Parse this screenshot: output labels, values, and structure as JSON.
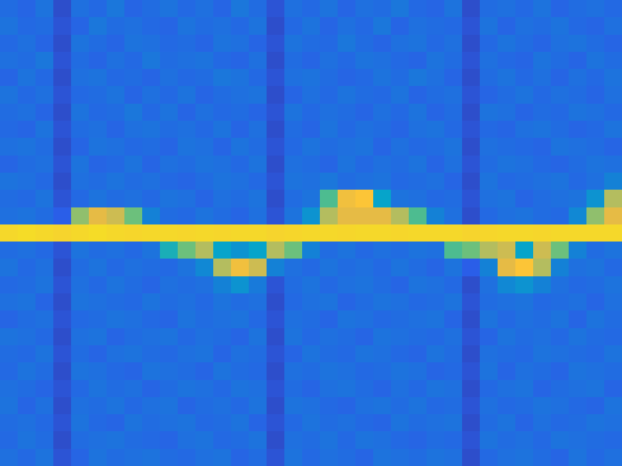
{
  "chart_data": {
    "type": "heatmap",
    "color": "parula",
    "tick_labels": false,
    "color_range": [
      0,
      1
    ],
    "cells": [
      [
        0.14,
        0.12,
        0.16,
        0.07,
        0.15,
        0.13,
        0.17,
        0.12,
        0.14,
        0.16,
        0.13,
        0.15,
        0.12,
        0.17,
        0.14,
        0.08,
        0.15,
        0.13,
        0.16,
        0.12,
        0.15,
        0.14,
        0.17,
        0.13,
        0.12,
        0.16,
        0.07,
        0.14,
        0.15,
        0.13,
        0.16,
        0.12,
        0.14,
        0.15,
        0.13
      ],
      [
        0.16,
        0.13,
        0.14,
        0.08,
        0.12,
        0.17,
        0.14,
        0.15,
        0.13,
        0.12,
        0.16,
        0.14,
        0.15,
        0.13,
        0.16,
        0.07,
        0.13,
        0.16,
        0.12,
        0.15,
        0.13,
        0.17,
        0.12,
        0.15,
        0.14,
        0.13,
        0.08,
        0.16,
        0.12,
        0.15,
        0.14,
        0.16,
        0.13,
        0.12,
        0.15
      ],
      [
        0.13,
        0.15,
        0.12,
        0.07,
        0.16,
        0.14,
        0.12,
        0.16,
        0.15,
        0.13,
        0.14,
        0.12,
        0.16,
        0.15,
        0.12,
        0.08,
        0.16,
        0.14,
        0.13,
        0.17,
        0.14,
        0.12,
        0.15,
        0.16,
        0.13,
        0.15,
        0.07,
        0.13,
        0.16,
        0.14,
        0.12,
        0.15,
        0.16,
        0.14,
        0.12
      ],
      [
        0.15,
        0.14,
        0.17,
        0.08,
        0.14,
        0.12,
        0.15,
        0.13,
        0.17,
        0.14,
        0.15,
        0.16,
        0.13,
        0.12,
        0.15,
        0.07,
        0.14,
        0.12,
        0.15,
        0.13,
        0.16,
        0.15,
        0.13,
        0.12,
        0.16,
        0.14,
        0.08,
        0.15,
        0.13,
        0.12,
        0.16,
        0.14,
        0.12,
        0.16,
        0.14
      ],
      [
        0.12,
        0.16,
        0.13,
        0.07,
        0.15,
        0.16,
        0.13,
        0.14,
        0.12,
        0.15,
        0.13,
        0.14,
        0.17,
        0.16,
        0.13,
        0.08,
        0.15,
        0.16,
        0.14,
        0.12,
        0.13,
        0.16,
        0.14,
        0.17,
        0.15,
        0.12,
        0.07,
        0.14,
        0.16,
        0.13,
        0.15,
        0.12,
        0.15,
        0.13,
        0.16
      ],
      [
        0.16,
        0.13,
        0.15,
        0.08,
        0.13,
        0.14,
        0.16,
        0.12,
        0.15,
        0.13,
        0.16,
        0.12,
        0.14,
        0.15,
        0.16,
        0.07,
        0.12,
        0.15,
        0.13,
        0.16,
        0.14,
        0.13,
        0.16,
        0.12,
        0.14,
        0.15,
        0.08,
        0.12,
        0.14,
        0.16,
        0.13,
        0.15,
        0.14,
        0.12,
        0.15
      ],
      [
        0.14,
        0.15,
        0.12,
        0.07,
        0.16,
        0.13,
        0.14,
        0.17,
        0.13,
        0.16,
        0.12,
        0.15,
        0.13,
        0.14,
        0.12,
        0.08,
        0.16,
        0.13,
        0.15,
        0.14,
        0.12,
        0.15,
        0.13,
        0.16,
        0.12,
        0.14,
        0.07,
        0.16,
        0.15,
        0.12,
        0.14,
        0.13,
        0.16,
        0.15,
        0.13
      ],
      [
        0.13,
        0.12,
        0.16,
        0.08,
        0.14,
        0.15,
        0.12,
        0.15,
        0.16,
        0.14,
        0.15,
        0.13,
        0.16,
        0.12,
        0.15,
        0.07,
        0.14,
        0.12,
        0.16,
        0.13,
        0.15,
        0.14,
        0.12,
        0.15,
        0.16,
        0.13,
        0.08,
        0.13,
        0.12,
        0.15,
        0.16,
        0.14,
        0.12,
        0.13,
        0.16
      ],
      [
        0.15,
        0.16,
        0.14,
        0.07,
        0.12,
        0.16,
        0.15,
        0.13,
        0.14,
        0.12,
        0.16,
        0.15,
        0.12,
        0.16,
        0.14,
        0.08,
        0.13,
        0.16,
        0.14,
        0.15,
        0.16,
        0.12,
        0.15,
        0.13,
        0.14,
        0.16,
        0.07,
        0.15,
        0.14,
        0.13,
        0.12,
        0.16,
        0.15,
        0.14,
        0.12
      ],
      [
        0.12,
        0.14,
        0.15,
        0.08,
        0.16,
        0.12,
        0.13,
        0.16,
        0.12,
        0.15,
        0.14,
        0.16,
        0.15,
        0.13,
        0.16,
        0.07,
        0.15,
        0.14,
        0.12,
        0.16,
        0.13,
        0.15,
        0.14,
        0.16,
        0.12,
        0.15,
        0.08,
        0.14,
        0.16,
        0.15,
        0.13,
        0.12,
        0.14,
        0.16,
        0.15
      ],
      [
        0.16,
        0.15,
        0.13,
        0.07,
        0.15,
        0.14,
        0.16,
        0.14,
        0.15,
        0.13,
        0.12,
        0.14,
        0.16,
        0.15,
        0.13,
        0.08,
        0.16,
        0.15,
        0.17,
        0.14,
        0.15,
        0.16,
        0.13,
        0.14,
        0.15,
        0.12,
        0.07,
        0.16,
        0.13,
        0.14,
        0.15,
        0.16,
        0.13,
        0.15,
        0.2
      ],
      [
        0.14,
        0.13,
        0.16,
        0.08,
        0.13,
        0.16,
        0.14,
        0.15,
        0.13,
        0.16,
        0.15,
        0.12,
        0.15,
        0.14,
        0.16,
        0.07,
        0.14,
        0.16,
        0.45,
        0.75,
        0.8,
        0.3,
        0.16,
        0.15,
        0.13,
        0.14,
        0.08,
        0.15,
        0.16,
        0.12,
        0.14,
        0.15,
        0.16,
        0.25,
        0.6
      ],
      [
        0.15,
        0.16,
        0.14,
        0.1,
        0.55,
        0.7,
        0.65,
        0.5,
        0.2,
        0.14,
        0.13,
        0.16,
        0.14,
        0.12,
        0.15,
        0.08,
        0.16,
        0.25,
        0.6,
        0.7,
        0.7,
        0.7,
        0.6,
        0.45,
        0.2,
        0.15,
        0.07,
        0.13,
        0.15,
        0.16,
        0.14,
        0.13,
        0.22,
        0.55,
        0.7
      ],
      [
        0.9,
        0.91,
        0.9,
        0.88,
        0.9,
        0.91,
        0.9,
        0.89,
        0.9,
        0.9,
        0.89,
        0.9,
        0.89,
        0.9,
        0.9,
        0.88,
        0.89,
        0.9,
        0.9,
        0.89,
        0.9,
        0.9,
        0.89,
        0.9,
        0.9,
        0.9,
        0.88,
        0.89,
        0.9,
        0.9,
        0.89,
        0.9,
        0.9,
        0.9,
        0.9
      ],
      [
        0.14,
        0.15,
        0.13,
        0.08,
        0.16,
        0.14,
        0.15,
        0.13,
        0.16,
        0.35,
        0.5,
        0.6,
        0.3,
        0.25,
        0.3,
        0.6,
        0.5,
        0.2,
        0.14,
        0.16,
        0.13,
        0.15,
        0.14,
        0.16,
        0.15,
        0.45,
        0.5,
        0.6,
        0.65,
        0.3,
        0.65,
        0.5,
        0.2,
        0.14,
        0.16
      ],
      [
        0.16,
        0.13,
        0.15,
        0.07,
        0.14,
        0.16,
        0.13,
        0.15,
        0.14,
        0.13,
        0.16,
        0.22,
        0.6,
        0.75,
        0.65,
        0.2,
        0.15,
        0.13,
        0.16,
        0.14,
        0.15,
        0.13,
        0.16,
        0.14,
        0.12,
        0.16,
        0.1,
        0.2,
        0.7,
        0.8,
        0.6,
        0.2,
        0.15,
        0.16,
        0.13
      ],
      [
        0.13,
        0.14,
        0.16,
        0.08,
        0.15,
        0.13,
        0.16,
        0.14,
        0.12,
        0.15,
        0.14,
        0.15,
        0.2,
        0.25,
        0.18,
        0.08,
        0.14,
        0.16,
        0.13,
        0.15,
        0.16,
        0.14,
        0.12,
        0.16,
        0.15,
        0.13,
        0.07,
        0.15,
        0.22,
        0.25,
        0.2,
        0.15,
        0.13,
        0.14,
        0.16
      ],
      [
        0.15,
        0.16,
        0.12,
        0.07,
        0.16,
        0.15,
        0.14,
        0.13,
        0.16,
        0.14,
        0.15,
        0.13,
        0.16,
        0.14,
        0.15,
        0.07,
        0.13,
        0.15,
        0.16,
        0.12,
        0.14,
        0.16,
        0.15,
        0.13,
        0.14,
        0.16,
        0.08,
        0.14,
        0.15,
        0.16,
        0.13,
        0.14,
        0.15,
        0.12,
        0.15
      ],
      [
        0.12,
        0.14,
        0.15,
        0.08,
        0.13,
        0.14,
        0.16,
        0.15,
        0.13,
        0.12,
        0.16,
        0.14,
        0.15,
        0.16,
        0.13,
        0.08,
        0.15,
        0.14,
        0.12,
        0.16,
        0.15,
        0.13,
        0.14,
        0.15,
        0.16,
        0.12,
        0.07,
        0.16,
        0.13,
        0.15,
        0.14,
        0.16,
        0.12,
        0.16,
        0.14
      ],
      [
        0.16,
        0.15,
        0.13,
        0.07,
        0.15,
        0.16,
        0.12,
        0.14,
        0.15,
        0.16,
        0.13,
        0.15,
        0.14,
        0.12,
        0.16,
        0.07,
        0.16,
        0.13,
        0.15,
        0.14,
        0.12,
        0.16,
        0.15,
        0.14,
        0.13,
        0.15,
        0.08,
        0.12,
        0.16,
        0.14,
        0.15,
        0.13,
        0.16,
        0.14,
        0.13
      ],
      [
        0.14,
        0.13,
        0.16,
        0.08,
        0.14,
        0.12,
        0.15,
        0.16,
        0.14,
        0.13,
        0.15,
        0.16,
        0.12,
        0.15,
        0.14,
        0.08,
        0.12,
        0.16,
        0.14,
        0.13,
        0.16,
        0.15,
        0.13,
        0.12,
        0.16,
        0.14,
        0.07,
        0.15,
        0.14,
        0.13,
        0.16,
        0.15,
        0.14,
        0.13,
        0.16
      ],
      [
        0.13,
        0.16,
        0.14,
        0.07,
        0.16,
        0.15,
        0.13,
        0.12,
        0.16,
        0.15,
        0.14,
        0.12,
        0.16,
        0.14,
        0.13,
        0.07,
        0.15,
        0.14,
        0.16,
        0.15,
        0.13,
        0.14,
        0.16,
        0.15,
        0.12,
        0.13,
        0.08,
        0.16,
        0.12,
        0.15,
        0.14,
        0.12,
        0.16,
        0.15,
        0.14
      ],
      [
        0.15,
        0.14,
        0.12,
        0.08,
        0.13,
        0.16,
        0.14,
        0.15,
        0.12,
        0.14,
        0.16,
        0.15,
        0.13,
        0.16,
        0.15,
        0.08,
        0.14,
        0.12,
        0.15,
        0.16,
        0.14,
        0.12,
        0.15,
        0.13,
        0.16,
        0.15,
        0.07,
        0.13,
        0.15,
        0.16,
        0.12,
        0.14,
        0.15,
        0.16,
        0.12
      ],
      [
        0.16,
        0.12,
        0.15,
        0.07,
        0.15,
        0.14,
        0.16,
        0.13,
        0.15,
        0.16,
        0.12,
        0.14,
        0.15,
        0.13,
        0.16,
        0.07,
        0.16,
        0.15,
        0.13,
        0.12,
        0.15,
        0.16,
        0.14,
        0.16,
        0.13,
        0.14,
        0.08,
        0.15,
        0.13,
        0.14,
        0.16,
        0.15,
        0.13,
        0.12,
        0.16
      ],
      [
        0.14,
        0.15,
        0.13,
        0.08,
        0.16,
        0.13,
        0.12,
        0.16,
        0.14,
        0.15,
        0.16,
        0.13,
        0.14,
        0.16,
        0.12,
        0.08,
        0.13,
        0.16,
        0.14,
        0.15,
        0.13,
        0.12,
        0.16,
        0.14,
        0.15,
        0.16,
        0.07,
        0.14,
        0.16,
        0.12,
        0.15,
        0.13,
        0.14,
        0.16,
        0.15
      ],
      [
        0.13,
        0.16,
        0.14,
        0.07,
        0.14,
        0.15,
        0.16,
        0.14,
        0.13,
        0.12,
        0.15,
        0.16,
        0.13,
        0.14,
        0.16,
        0.07,
        0.15,
        0.14,
        0.16,
        0.13,
        0.16,
        0.15,
        0.13,
        0.12,
        0.14,
        0.13,
        0.08,
        0.16,
        0.14,
        0.15,
        0.13,
        0.16,
        0.15,
        0.14,
        0.13
      ],
      [
        0.15,
        0.13,
        0.16,
        0.08,
        0.12,
        0.16,
        0.14,
        0.15,
        0.16,
        0.14,
        0.13,
        0.15,
        0.16,
        0.12,
        0.14,
        0.08,
        0.16,
        0.13,
        0.15,
        0.14,
        0.12,
        0.16,
        0.15,
        0.14,
        0.16,
        0.15,
        0.07,
        0.13,
        0.15,
        0.16,
        0.14,
        0.12,
        0.16,
        0.13,
        0.15
      ]
    ]
  }
}
